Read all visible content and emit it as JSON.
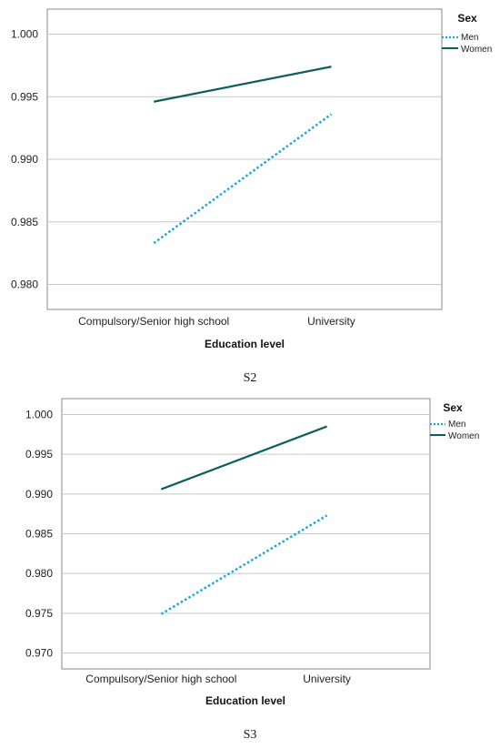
{
  "figures": [
    {
      "caption": "S2",
      "chart_data": {
        "type": "line",
        "categories": [
          "Compulsory/Senior high school",
          "University"
        ],
        "xlabel": "Education level",
        "ylabel": "",
        "ylim": [
          0.978,
          1.002
        ],
        "yticks": [
          "1.000",
          "0.995",
          "0.990",
          "0.985",
          "0.980"
        ],
        "ytick_values": [
          1.0,
          0.995,
          0.99,
          0.985,
          0.98
        ],
        "legend": {
          "title": "Sex",
          "placement": "top-right"
        },
        "grid": true,
        "series": [
          {
            "name": "Men",
            "values": [
              0.9833,
              0.9936
            ],
            "style": "dotted",
            "color": "#1aa7de"
          },
          {
            "name": "Women",
            "values": [
              0.9946,
              0.9974
            ],
            "style": "solid",
            "color": "#0f5e5e"
          }
        ]
      }
    },
    {
      "caption": "S3",
      "chart_data": {
        "type": "line",
        "categories": [
          "Compulsory/Senior high school",
          "University"
        ],
        "xlabel": "Education level",
        "ylabel": "",
        "ylim": [
          0.968,
          1.002
        ],
        "yticks": [
          "1.000",
          "0.995",
          "0.990",
          "0.985",
          "0.980",
          "0.975",
          "0.970"
        ],
        "ytick_values": [
          1.0,
          0.995,
          0.99,
          0.985,
          0.98,
          0.975,
          0.97
        ],
        "legend": {
          "title": "Sex",
          "placement": "top-right"
        },
        "grid": true,
        "series": [
          {
            "name": "Men",
            "values": [
              0.9749,
              0.9873
            ],
            "style": "dotted",
            "color": "#1aa7de"
          },
          {
            "name": "Women",
            "values": [
              0.9906,
              0.9985
            ],
            "style": "solid",
            "color": "#0f5e5e"
          }
        ]
      }
    }
  ]
}
